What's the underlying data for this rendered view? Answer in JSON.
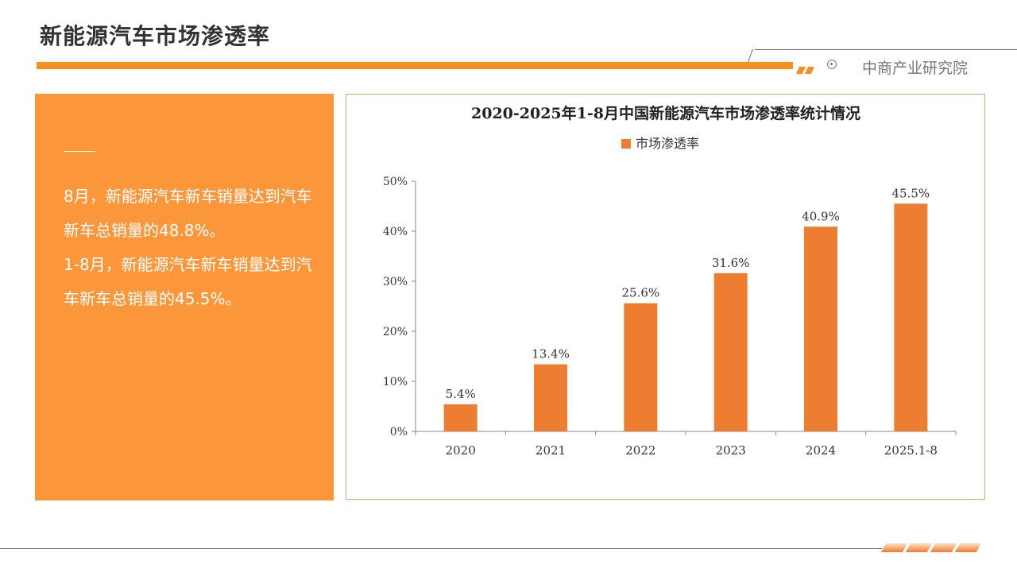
{
  "header": {
    "title": "新能源汽车市场渗透率",
    "brand": "中商产业研究院"
  },
  "left_panel": {
    "paragraphs": [
      "8月，新能源汽车新车销量达到汽车新车总销量的48.8%。",
      "1-8月，新能源汽车新车销量达到汽车新车总销量的45.5%。"
    ]
  },
  "colors": {
    "accent": "#F7901E",
    "bar": "#ED7D31",
    "panel": "#FB963B"
  },
  "chart_data": {
    "type": "bar",
    "title": "2020-2025年1-8月中国新能源汽车市场渗透率统计情况",
    "legend": [
      "市场渗透率"
    ],
    "legend_position": "top",
    "categories": [
      "2020",
      "2021",
      "2022",
      "2023",
      "2024",
      "2025.1-8"
    ],
    "values": [
      5.4,
      13.4,
      25.6,
      31.6,
      40.9,
      45.5
    ],
    "data_labels": [
      "5.4%",
      "13.4%",
      "25.6%",
      "31.6%",
      "40.9%",
      "45.5%"
    ],
    "y_ticks": [
      "0%",
      "10%",
      "20%",
      "30%",
      "40%",
      "50%"
    ],
    "ylim": [
      0,
      50
    ],
    "xlabel": "",
    "ylabel": "",
    "grid": false
  }
}
